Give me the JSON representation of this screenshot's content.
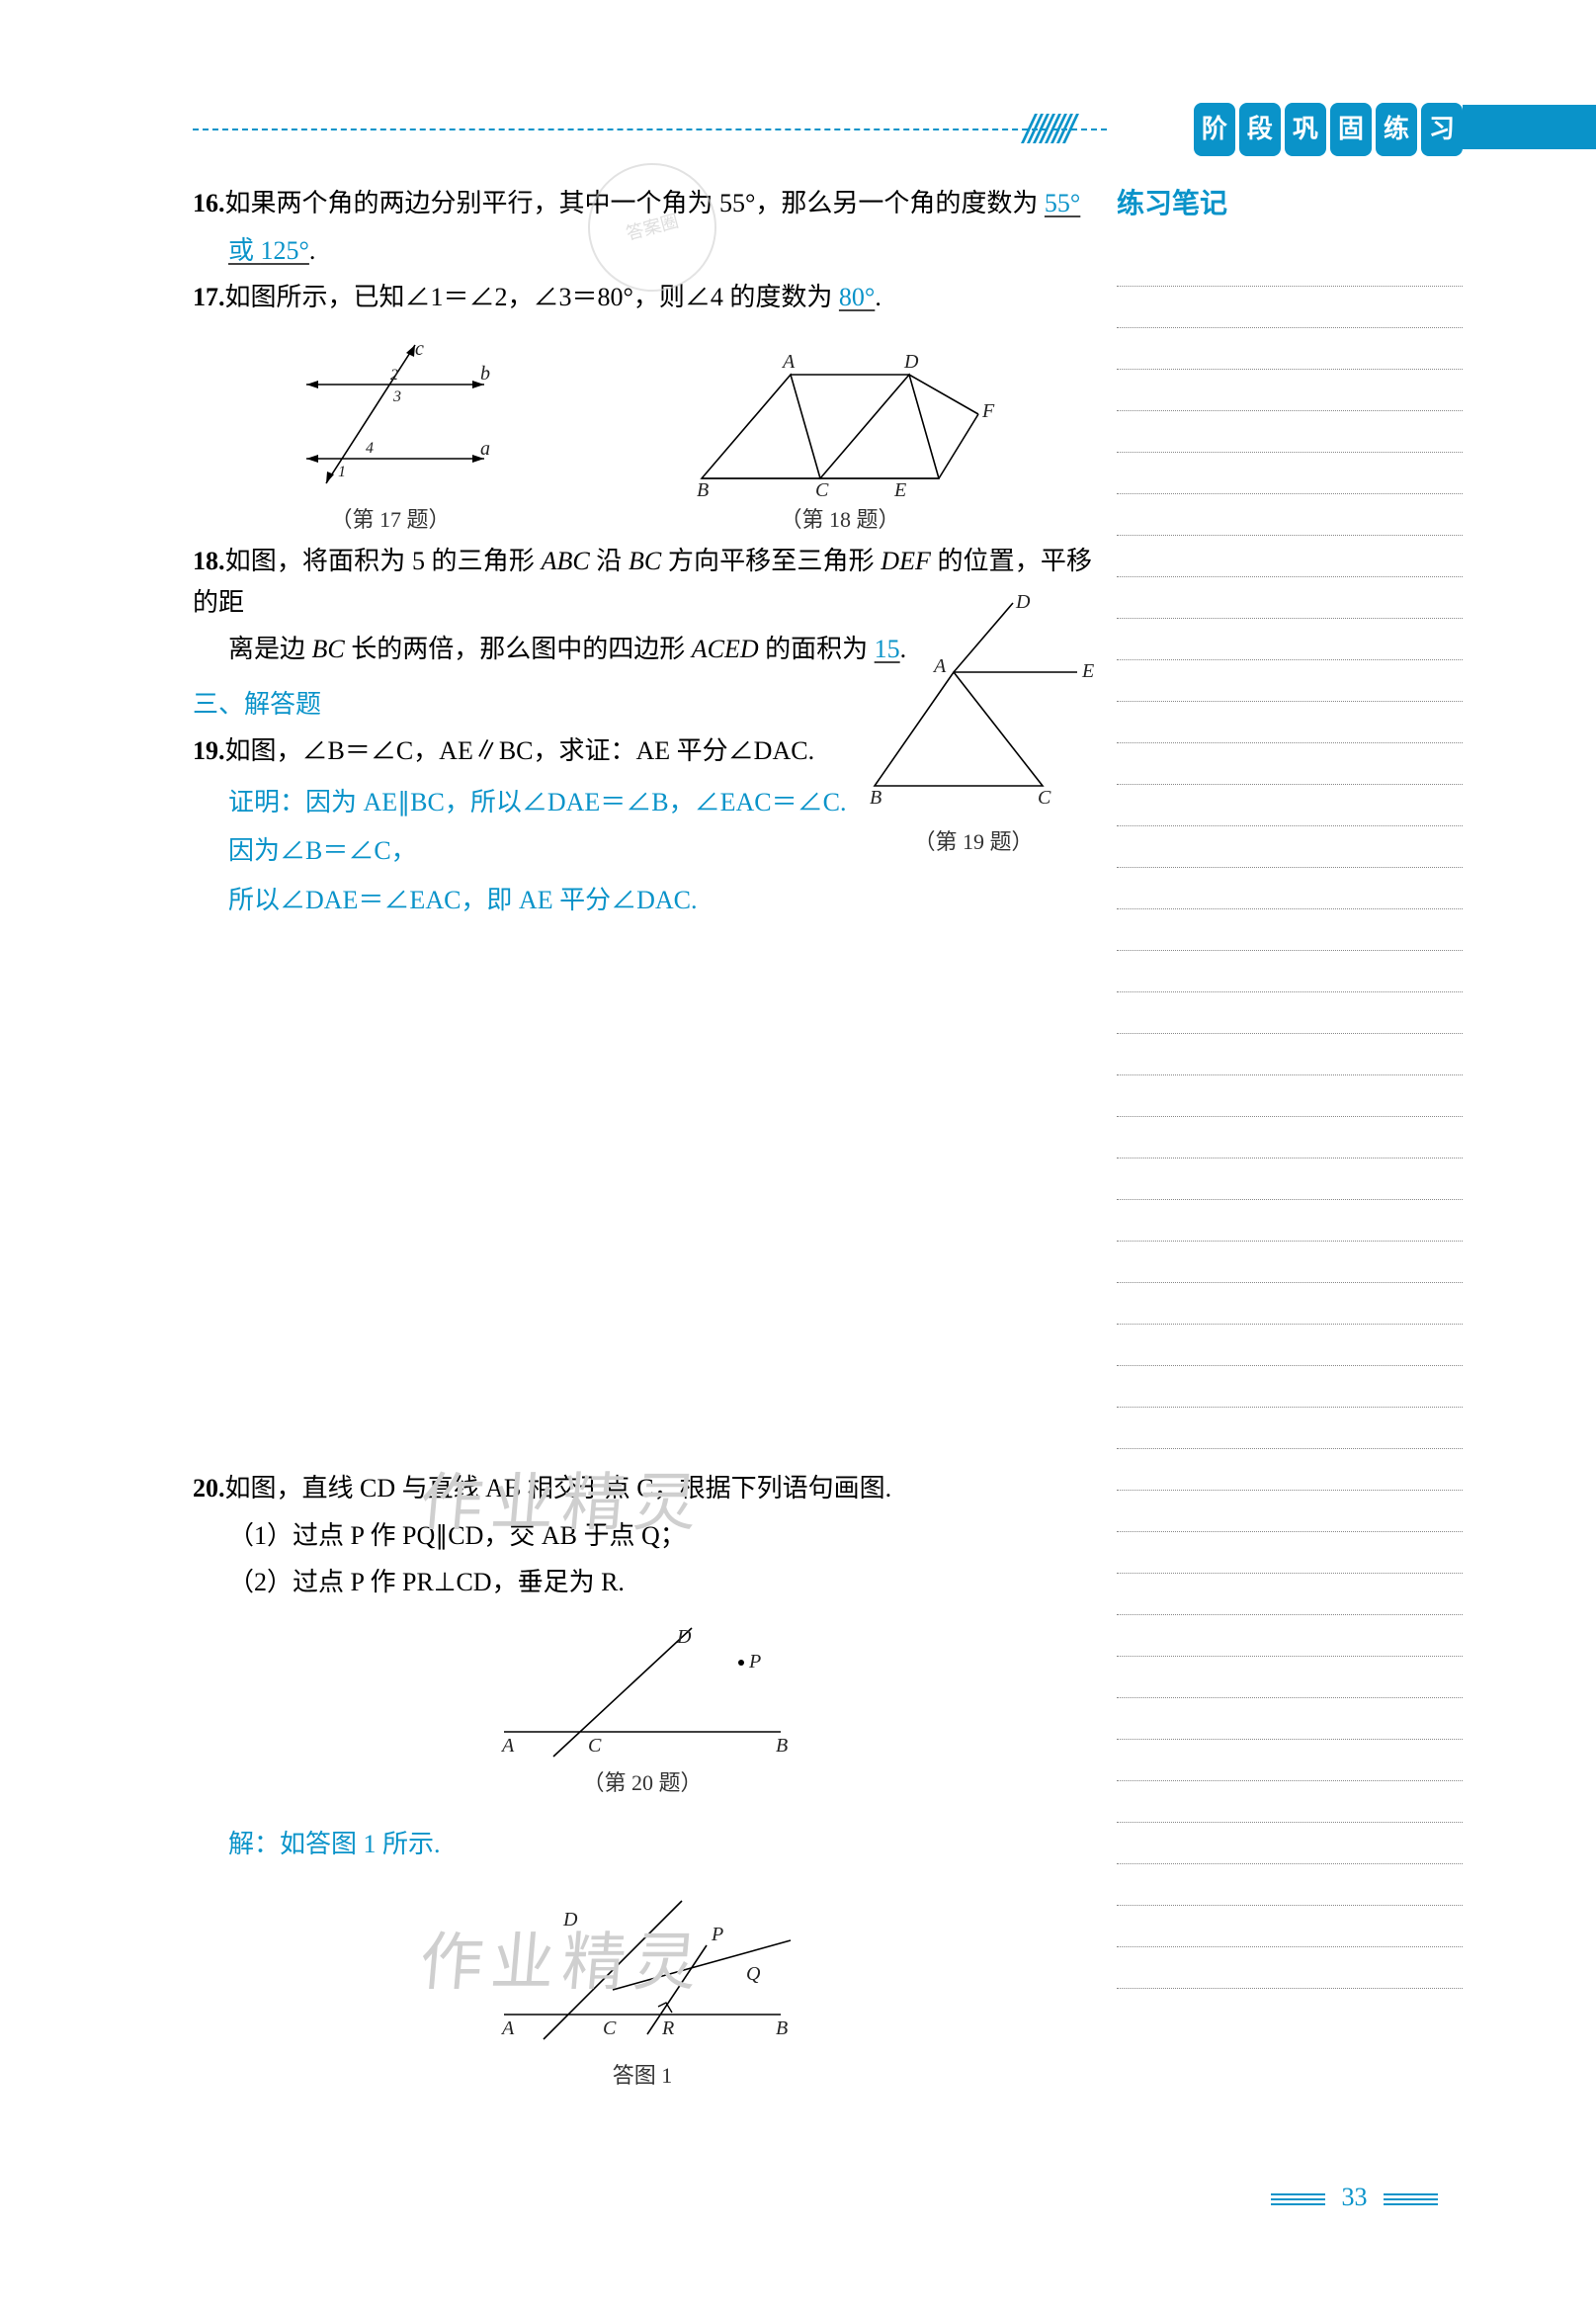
{
  "header": {
    "capsules": [
      "阶",
      "段",
      "巩",
      "固",
      "练",
      "习"
    ]
  },
  "sidebar": {
    "title": "练习笔记",
    "line_count": 42
  },
  "q16": {
    "num": "16.",
    "text_a": "如果两个角的两边分别平行，其中一个角为 55°，那么另一个角的度数为 ",
    "ans1": "55°",
    "mid": "或 ",
    "ans2": "125°",
    "tail": "."
  },
  "q17": {
    "num": "17.",
    "text_a": "如图所示，已知∠1＝∠2，∠3＝80°，则∠4 的度数为 ",
    "ans": "80°",
    "tail": ".",
    "cap": "（第 17 题）"
  },
  "q18": {
    "num": "18.",
    "text_a": "如图，将面积为 5 的三角形 ",
    "abc": "ABC",
    "text_b": " 沿 ",
    "bc": "BC",
    "text_c": " 方向平移至三角形 ",
    "def": "DEF",
    "text_d": " 的位置，平移的距",
    "text_e": "离是边 ",
    "bc2": "BC",
    "text_f": " 长的两倍，那么图中的四边形 ",
    "aced": "ACED",
    "text_g": " 的面积为 ",
    "ans": "15",
    "tail": ".",
    "cap": "（第 18 题）"
  },
  "section3": "三、解答题",
  "q19": {
    "num": "19.",
    "text": "如图，∠B＝∠C，AE∥BC，求证：AE 平分∠DAC.",
    "proof_label": "证明：",
    "l1": "因为 AE∥BC，所以∠DAE＝∠B，∠EAC＝∠C.",
    "l2": "因为∠B＝∠C，",
    "l3": "所以∠DAE＝∠EAC，即 AE 平分∠DAC.",
    "cap": "（第 19 题）"
  },
  "q20": {
    "num": "20.",
    "text": "如图，直线 CD 与直线 AB 相交于点 C，根据下列语句画图.",
    "sub1": "（1）过点 P 作 PQ∥CD，交 AB 于点 Q；",
    "sub2": "（2）过点 P 作 PR⊥CD，垂足为 R.",
    "cap": "（第 20 题）",
    "sol_label": "解：",
    "sol_text": "如答图 1 所示.",
    "ans_cap": "答图 1"
  },
  "watermarks": {
    "w1": "作业精灵",
    "w2": "作业精灵"
  },
  "page_number": "33"
}
